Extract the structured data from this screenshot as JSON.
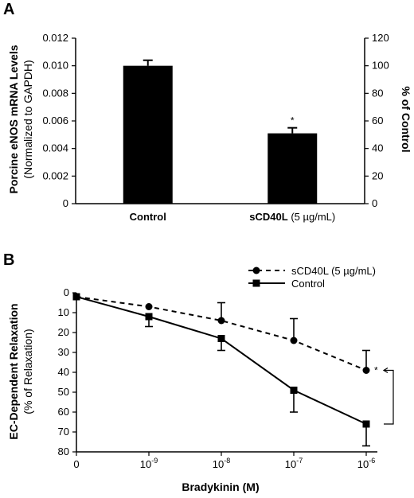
{
  "chart_data": [
    {
      "panel": "A",
      "type": "bar",
      "ylabel_line1": "Porcine eNOS mRNA Levels",
      "ylabel_line2": "(Normalized to GAPDH)",
      "y2label": "% of Control",
      "ylim": [
        0,
        0.012
      ],
      "yticks": [
        "0",
        "0.002",
        "0.004",
        "0.006",
        "0.008",
        "0.010",
        "0.012"
      ],
      "y2lim": [
        0,
        120
      ],
      "y2ticks": [
        "0",
        "20",
        "40",
        "60",
        "80",
        "100",
        "120"
      ],
      "categories": [
        {
          "bold": "Control",
          "rest": ""
        },
        {
          "bold": "sCD40L",
          "rest": " (5 µg/mL)"
        }
      ],
      "values": [
        0.01,
        0.0051
      ],
      "errors": [
        0.0004,
        0.0004
      ],
      "annotations": [
        "",
        "*"
      ],
      "colors": {
        "bar": "#000000"
      }
    },
    {
      "panel": "B",
      "type": "line",
      "xlabel": "Bradykinin (M)",
      "ylabel_line1": "EC-Dependent Relaxation",
      "ylabel_line2": "(% of Relaxation)",
      "ylim": [
        0,
        80
      ],
      "y_inverted": true,
      "yticks": [
        "0",
        "10",
        "20",
        "30",
        "40",
        "50",
        "60",
        "70",
        "80"
      ],
      "x": [
        "0",
        "1e-9",
        "1e-8",
        "1e-7",
        "1e-6"
      ],
      "xtick_labels": [
        {
          "base": "0",
          "exp": ""
        },
        {
          "base": "10",
          "exp": "-9"
        },
        {
          "base": "10",
          "exp": "-8"
        },
        {
          "base": "10",
          "exp": "-7"
        },
        {
          "base": "10",
          "exp": "-6"
        }
      ],
      "series": [
        {
          "name": "sCD40L (5 µg/mL)",
          "style": "dashed",
          "marker": "circle",
          "values": [
            2,
            7,
            14,
            24,
            39
          ],
          "errors": [
            0,
            0,
            9,
            11,
            10
          ]
        },
        {
          "name": "Control",
          "style": "solid",
          "marker": "square",
          "values": [
            2,
            12,
            23,
            49,
            66
          ],
          "errors": [
            0,
            5,
            6,
            11,
            11
          ]
        }
      ],
      "annotation": "*",
      "legend_position": "top-right",
      "colors": {
        "line": "#000000"
      }
    }
  ]
}
